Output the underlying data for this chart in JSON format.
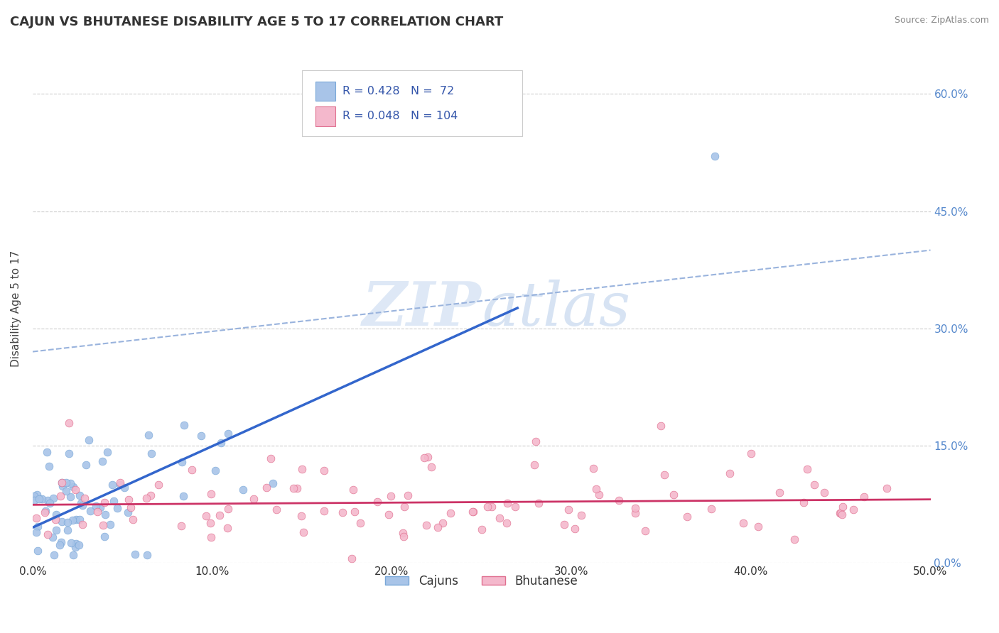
{
  "title": "CAJUN VS BHUTANESE DISABILITY AGE 5 TO 17 CORRELATION CHART",
  "source": "Source: ZipAtlas.com",
  "ylabel": "Disability Age 5 to 17",
  "xlim": [
    0.0,
    0.5
  ],
  "ylim": [
    0.0,
    0.65
  ],
  "xtick_vals": [
    0.0,
    0.1,
    0.2,
    0.3,
    0.4,
    0.5
  ],
  "ytick_vals": [
    0.0,
    0.15,
    0.3,
    0.45,
    0.6
  ],
  "cajun_R": 0.428,
  "cajun_N": 72,
  "bhutanese_R": 0.048,
  "bhutanese_N": 104,
  "cajun_dot_color": "#a8c4e8",
  "cajun_edge_color": "#7aA8d8",
  "bhutanese_dot_color": "#f4b8cc",
  "bhutanese_edge_color": "#e07090",
  "cajun_line_color": "#3366cc",
  "bhutanese_line_color": "#cc3366",
  "dashed_line_color": "#99b3dd",
  "grid_color": "#cccccc",
  "right_tick_color": "#5588cc",
  "background_color": "#ffffff",
  "cajun_legend_patch_color": "#a8c4e8",
  "bhutanese_legend_patch_color": "#f4b8cc",
  "legend_text_color": "#3355aa",
  "title_color": "#333333",
  "source_color": "#888888",
  "watermark_color": "#dce8f4",
  "ylabel_color": "#444444"
}
